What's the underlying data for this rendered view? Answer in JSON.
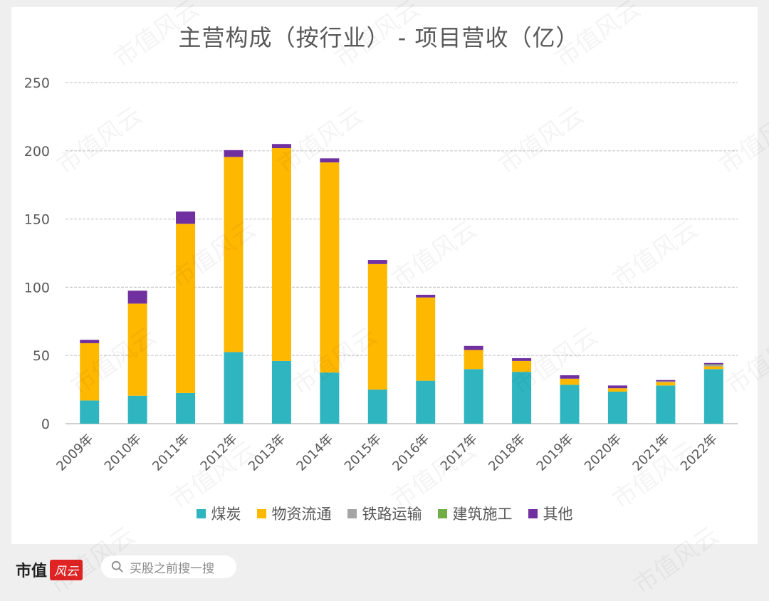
{
  "title": "主营构成（按行业） - 项目营收（亿）",
  "chart_data": {
    "type": "bar",
    "stacked": true,
    "title": "主营构成（按行业） - 项目营收（亿）",
    "xlabel": "",
    "ylabel": "",
    "ylim": [
      0,
      250
    ],
    "yticks": [
      0,
      50,
      100,
      150,
      200,
      250
    ],
    "grid": true,
    "legend_position": "bottom",
    "categories": [
      "2009年",
      "2010年",
      "2011年",
      "2012年",
      "2013年",
      "2014年",
      "2015年",
      "2016年",
      "2017年",
      "2018年",
      "2019年",
      "2020年",
      "2021年",
      "2022年"
    ],
    "series": [
      {
        "name": "煤炭",
        "color": "#2fb5c0",
        "values": [
          17,
          20.5,
          22.5,
          52.5,
          46,
          37.5,
          25,
          31.5,
          40,
          38,
          28.5,
          23.5,
          28,
          40
        ]
      },
      {
        "name": "物资流通",
        "color": "#ffb800",
        "values": [
          42,
          67.5,
          124,
          143,
          156,
          154,
          92,
          61,
          14,
          8,
          4.5,
          2.5,
          2.5,
          2
        ]
      },
      {
        "name": "铁路运输",
        "color": "#a5a5a5",
        "values": [
          0,
          0,
          0,
          0,
          0,
          0,
          0,
          0,
          0,
          0,
          0,
          0,
          0.5,
          1
        ]
      },
      {
        "name": "建筑施工",
        "color": "#70ad47",
        "values": [
          0,
          0,
          0,
          0,
          0,
          0,
          0,
          0,
          0,
          0,
          0,
          0,
          0,
          0.5
        ]
      },
      {
        "name": "其他",
        "color": "#7030a0",
        "values": [
          2.5,
          9.5,
          9,
          5,
          3,
          3,
          3,
          2,
          3,
          2,
          2.5,
          2,
          1,
          1
        ]
      }
    ]
  },
  "footer": {
    "brand": "市值",
    "brand_logo": "风云",
    "search_placeholder": "买股之前搜一搜",
    "search_icon": "search-icon"
  },
  "watermark_text": "市值风云"
}
